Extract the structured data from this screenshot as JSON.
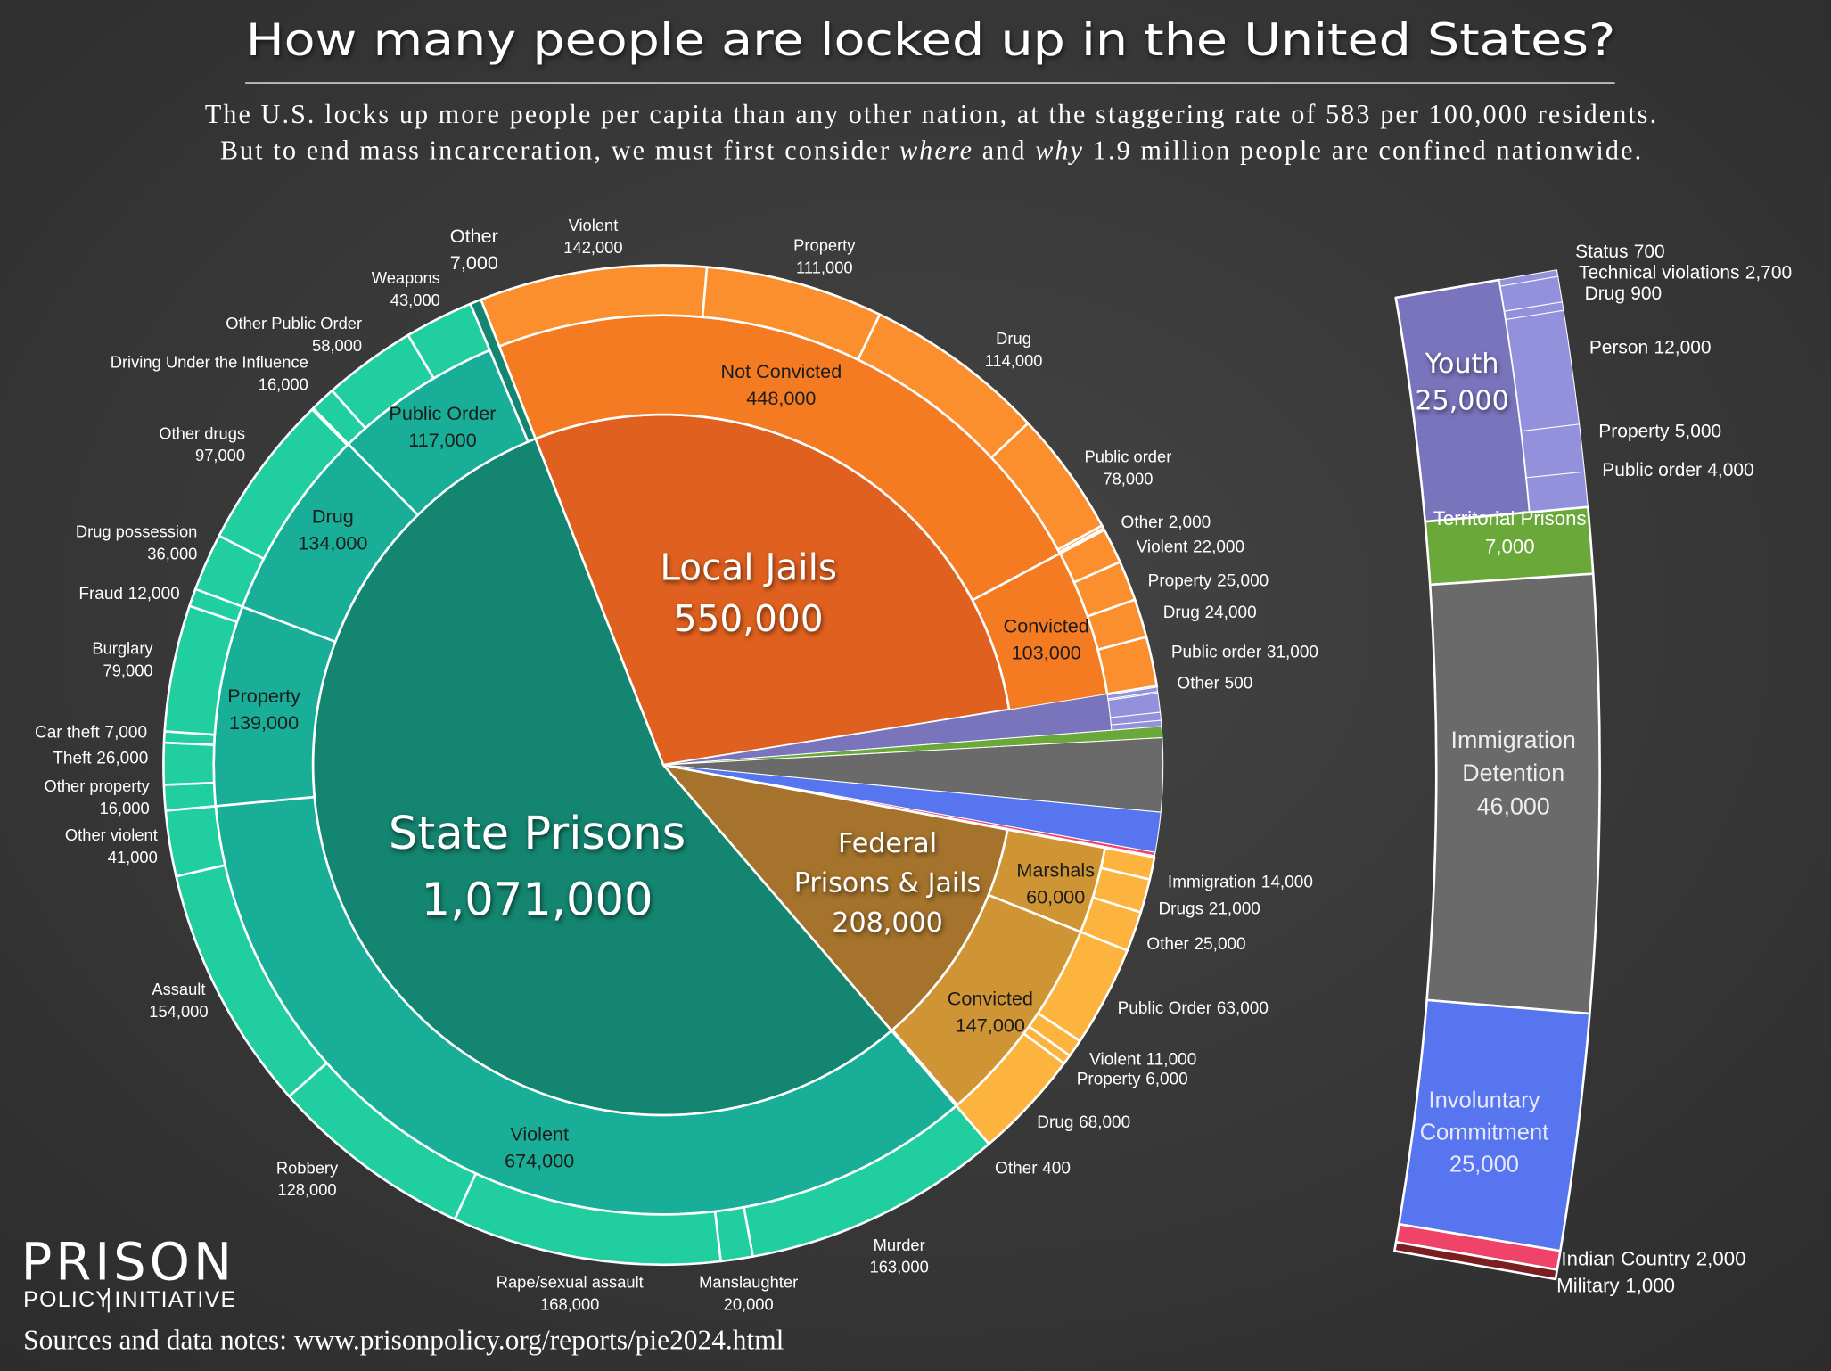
{
  "chart_data": {
    "type": "sunburst",
    "title": "How many people are locked up in the United States?",
    "subtitle": [
      [
        "The U.S. locks up more people per capita than any other nation, at the staggering rate of 583 per 100,000 residents."
      ],
      [
        "But to end mass incarceration, we must first consider ",
        "where",
        " and ",
        "why",
        " 1.9 million people are confined nationwide."
      ]
    ],
    "slices": [
      {
        "name": "Local Jails",
        "value": 550000,
        "label": "550,000",
        "colors": [
          "#e0611f",
          "#f47b22",
          "#fb8f2d"
        ],
        "children": [
          {
            "name": "Not Convicted",
            "value": 448000,
            "label": "448,000",
            "children": [
              {
                "name": "Violent",
                "value": 142000,
                "label": "142,000"
              },
              {
                "name": "Property",
                "value": 111000,
                "label": "111,000"
              },
              {
                "name": "Drug",
                "value": 114000,
                "label": "114,000"
              },
              {
                "name": "Public order",
                "value": 78000,
                "label": "78,000"
              },
              {
                "name": "Other",
                "value": 2000,
                "label": "2,000"
              }
            ]
          },
          {
            "name": "Convicted",
            "value": 103000,
            "label": "103,000",
            "children": [
              {
                "name": "Violent",
                "value": 22000,
                "label": "22,000"
              },
              {
                "name": "Property",
                "value": 25000,
                "label": "25,000"
              },
              {
                "name": "Drug",
                "value": 24000,
                "label": "24,000"
              },
              {
                "name": "Public order",
                "value": 31000,
                "label": "31,000"
              },
              {
                "name": "Other",
                "value": 500,
                "label": "500"
              }
            ]
          }
        ]
      },
      {
        "name": [
          "Federal",
          "Prisons & Jails"
        ],
        "value": 208000,
        "label": "208,000",
        "colors": [
          "#a5732c",
          "#cf9434",
          "#fdb43e"
        ],
        "children": [
          {
            "name": "Marshals",
            "value": 60000,
            "label": "60,000",
            "children": [
              {
                "name": "Immigration",
                "value": 14000,
                "label": "14,000"
              },
              {
                "name": "Drugs",
                "value": 21000,
                "label": "21,000"
              },
              {
                "name": "Other",
                "value": 25000,
                "label": "25,000"
              }
            ]
          },
          {
            "name": "Convicted",
            "value": 147000,
            "label": "147,000",
            "children": [
              {
                "name": "Public Order",
                "value": 63000,
                "label": "63,000"
              },
              {
                "name": "Violent",
                "value": 11000,
                "label": "11,000"
              },
              {
                "name": "Property",
                "value": 6000,
                "label": "6,000"
              },
              {
                "name": "Drug",
                "value": 68000,
                "label": "68,000"
              },
              {
                "name": "Other",
                "value": 400,
                "label": "400"
              }
            ]
          }
        ]
      },
      {
        "name": "State Prisons",
        "value": 1071000,
        "label": "1,071,000",
        "colors": [
          "#148570",
          "#18ae97",
          "#20cea0"
        ],
        "children": [
          {
            "name": "Violent",
            "value": 674000,
            "label": "674,000",
            "children": [
              {
                "name": "Murder",
                "value": 163000,
                "label": "163,000"
              },
              {
                "name": "Manslaughter",
                "value": 20000,
                "label": "20,000"
              },
              {
                "name": "Rape/sexual assault",
                "value": 168000,
                "label": "168,000"
              },
              {
                "name": "Robbery",
                "value": 128000,
                "label": "128,000"
              },
              {
                "name": "Assault",
                "value": 154000,
                "label": "154,000"
              },
              {
                "name": "Other violent",
                "value": 41000,
                "label": "41,000"
              }
            ]
          },
          {
            "name": "Property",
            "value": 139000,
            "label": "139,000",
            "children": [
              {
                "name": "Other property",
                "value": 16000,
                "label": "16,000"
              },
              {
                "name": "Theft",
                "value": 26000,
                "label": "26,000"
              },
              {
                "name": "Car theft",
                "value": 7000,
                "label": "7,000"
              },
              {
                "name": "Burglary",
                "value": 79000,
                "label": "79,000"
              },
              {
                "name": "Fraud",
                "value": 12000,
                "label": "12,000"
              }
            ]
          },
          {
            "name": "Drug",
            "value": 134000,
            "label": "134,000",
            "children": [
              {
                "name": "Drug possession",
                "value": 36000,
                "label": "36,000"
              },
              {
                "name": "Other drugs",
                "value": 97000,
                "label": "97,000"
              }
            ]
          },
          {
            "name": "Public Order",
            "value": 117000,
            "label": "117,000",
            "children": [
              {
                "name": "Driving Under the Influence",
                "value": 16000,
                "label": "16,000"
              },
              {
                "name": "Other Public Order",
                "value": 58000,
                "label": "58,000"
              },
              {
                "name": "Weapons",
                "value": 43000,
                "label": "43,000"
              }
            ]
          },
          {
            "name": "Other",
            "value": 7000,
            "label": "7,000"
          }
        ]
      }
    ],
    "other_systems": {
      "segments": [
        {
          "name": "Youth",
          "value": 25000,
          "label": "25,000",
          "colors": [
            "#7a74bd",
            "#9491dc"
          ],
          "children": [
            {
              "name": "Status",
              "value": 700,
              "label": "700"
            },
            {
              "name": "Technical violations",
              "value": 2700,
              "label": "2,700"
            },
            {
              "name": "Drug",
              "value": 900,
              "label": "900"
            },
            {
              "name": "Person",
              "value": 12000,
              "label": "12,000"
            },
            {
              "name": "Property",
              "value": 5000,
              "label": "5,000"
            },
            {
              "name": "Public order",
              "value": 4000,
              "label": "4,000"
            }
          ]
        },
        {
          "name": "Territorial Prisons",
          "value": 7000,
          "label": "7,000",
          "color": "#6aa83a"
        },
        {
          "name": [
            "Immigration",
            "Detention"
          ],
          "value": 46000,
          "label": "46,000",
          "color": "#6a6a6a"
        },
        {
          "name": [
            "Involuntary",
            "Commitment"
          ],
          "value": 25000,
          "label": "25,000",
          "color": "#5675ef"
        },
        {
          "name": "Indian Country",
          "value": 2000,
          "label": "2,000",
          "color": "#f0436a"
        },
        {
          "name": "Military",
          "value": 1000,
          "label": "1,000",
          "color": "#7a1e22"
        }
      ]
    },
    "logo": [
      "PRISON",
      "POLICY",
      "INITIATIVE"
    ],
    "source": "Sources and data notes: www.prisonpolicy.org/reports/pie2024.html"
  }
}
